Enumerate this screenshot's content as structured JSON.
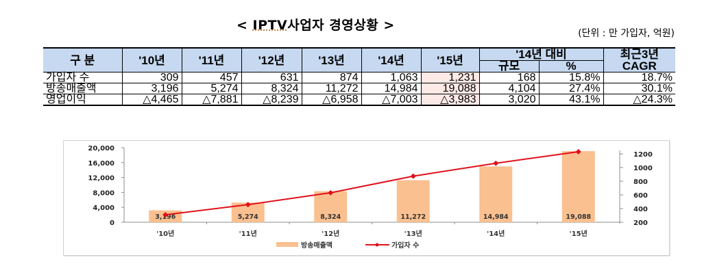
{
  "title": {
    "prefix": "< ",
    "iptv": "IPTV",
    "main": "사업자 경영상황",
    "suffix": " >"
  },
  "unit_note": "(단위 : 만 가입자, 억원)",
  "table": {
    "header": {
      "category": "구  분",
      "years": [
        "'10년",
        "'11년",
        "'12년",
        "'13년",
        "'14년",
        "'15년"
      ],
      "compare_group": "'14년  대비",
      "compare_sub": [
        "규모",
        "%"
      ],
      "cagr_line1": "최근3년",
      "cagr_line2": "CAGR"
    },
    "rows": [
      {
        "label": "가입자 수",
        "values": [
          "309",
          "457",
          "631",
          "874",
          "1,063",
          "1,231"
        ],
        "diff": "168",
        "pct": "15.8%",
        "cagr": "18.7%"
      },
      {
        "label": "방송매출액",
        "values": [
          "3,196",
          "5,274",
          "8,324",
          "11,272",
          "14,984",
          "19,088"
        ],
        "diff": "4,104",
        "pct": "27.4%",
        "cagr": "30.1%"
      },
      {
        "label": "영업이익",
        "values": [
          "△4,465",
          "△7,881",
          "△8,239",
          "△6,958",
          "△7,003",
          "△3,983"
        ],
        "diff": "3,020",
        "pct": "43.1%",
        "cagr": "△24.3%"
      }
    ]
  },
  "chart_data": {
    "type": "bar",
    "title": "",
    "categories": [
      "'10년",
      "'11년",
      "'12년",
      "'13년",
      "'14년",
      "'15년"
    ],
    "series": [
      {
        "name": "방송매출액",
        "type": "bar",
        "axis": "left",
        "color": "#fac090",
        "values": [
          3196,
          5274,
          8324,
          11272,
          14984,
          19088
        ],
        "labels": [
          "3,196",
          "5,274",
          "8,324",
          "11,272",
          "14,984",
          "19,088"
        ]
      },
      {
        "name": "가입자 수",
        "type": "line",
        "axis": "right",
        "color": "#e0101a",
        "values": [
          309,
          457,
          631,
          874,
          1063,
          1231
        ]
      }
    ],
    "left_axis": {
      "ylim": [
        0,
        20000
      ],
      "ticks": [
        "20,000",
        "16,000",
        "12,000",
        "8,000",
        "4,000",
        "0"
      ]
    },
    "right_axis": {
      "ylim": [
        200,
        1200
      ],
      "ticks": [
        "1200",
        "1000",
        "800",
        "600",
        "400",
        "200"
      ]
    },
    "legend": {
      "position": "bottom",
      "items": [
        "방송매출액",
        "가입자 수"
      ]
    },
    "grid": false
  }
}
